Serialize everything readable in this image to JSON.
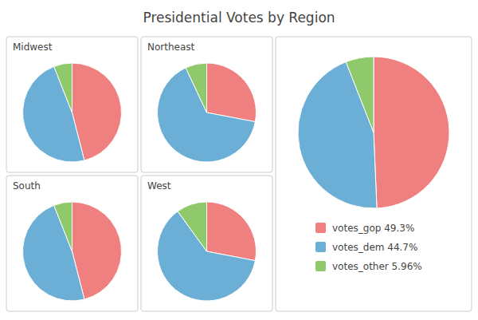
{
  "chart_data": [
    {
      "type": "pie",
      "title": "Midwest",
      "values": [
        46.0,
        48.0,
        6.0
      ],
      "colors": [
        "#f08080",
        "#6baed6",
        "#90c96c"
      ]
    },
    {
      "type": "pie",
      "title": "Northeast",
      "values": [
        28.0,
        65.0,
        7.0
      ],
      "colors": [
        "#f08080",
        "#6baed6",
        "#90c96c"
      ]
    },
    {
      "type": "pie",
      "title": "South",
      "values": [
        46.0,
        48.0,
        6.0
      ],
      "colors": [
        "#f08080",
        "#6baed6",
        "#90c96c"
      ]
    },
    {
      "type": "pie",
      "title": "West",
      "values": [
        28.0,
        62.0,
        10.0
      ],
      "colors": [
        "#f08080",
        "#6baed6",
        "#90c96c"
      ]
    },
    {
      "type": "pie",
      "title": "Presidential Votes by Region",
      "categories": [
        "votes_gop 49.3%",
        "votes_dem 44.7%",
        "votes_other 5.96%"
      ],
      "values": [
        49.3,
        44.7,
        5.96
      ],
      "colors": [
        "#f08080",
        "#6baed6",
        "#90c96c"
      ],
      "legend": "bottom"
    }
  ]
}
